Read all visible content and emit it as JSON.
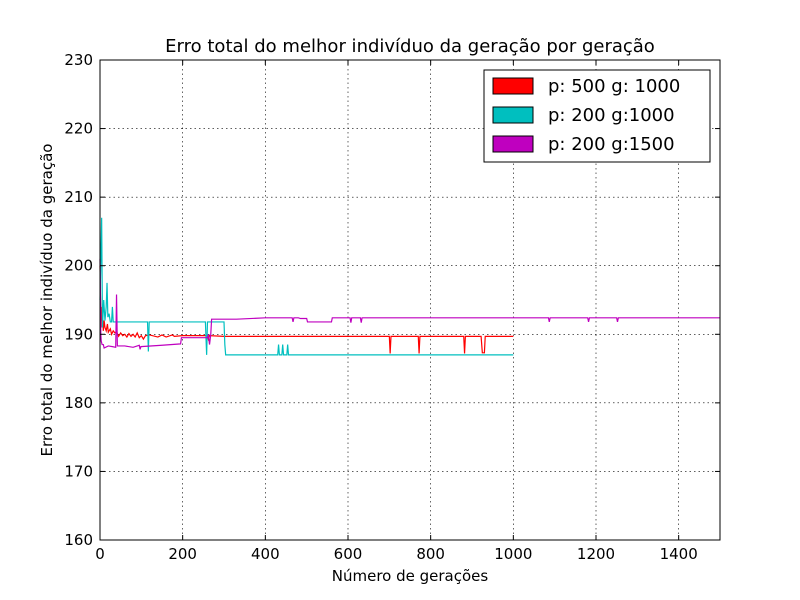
{
  "chart_data": {
    "type": "line",
    "title": "Erro total do melhor indivíduo da geração por geração",
    "xlabel": "Número de gerações",
    "ylabel": "Erro total do melhor indivíduo da geração",
    "xlim": [
      0,
      1500
    ],
    "ylim": [
      160,
      230
    ],
    "xticks": [
      0,
      200,
      400,
      600,
      800,
      1000,
      1200,
      1400
    ],
    "yticks": [
      160,
      170,
      180,
      190,
      200,
      210,
      220,
      230
    ],
    "grid": true,
    "legend_position": "top-right",
    "series": [
      {
        "name": "p: 500 g: 1000",
        "color": "#ff0000",
        "points": [
          [
            0,
            200
          ],
          [
            2,
            192
          ],
          [
            3,
            194
          ],
          [
            5,
            191
          ],
          [
            6,
            193
          ],
          [
            8,
            190.5
          ],
          [
            10,
            192
          ],
          [
            12,
            191
          ],
          [
            15,
            190.5
          ],
          [
            18,
            191.5
          ],
          [
            20,
            190.3
          ],
          [
            25,
            190.8
          ],
          [
            28,
            190
          ],
          [
            32,
            190.5
          ],
          [
            36,
            190.2
          ],
          [
            40,
            190.4
          ],
          [
            45,
            189.7
          ],
          [
            50,
            190.2
          ],
          [
            55,
            189.8
          ],
          [
            60,
            190
          ],
          [
            65,
            189.6
          ],
          [
            70,
            190.1
          ],
          [
            75,
            189.7
          ],
          [
            80,
            190
          ],
          [
            85,
            189.6
          ],
          [
            90,
            190.2
          ],
          [
            95,
            189.5
          ],
          [
            100,
            189.8
          ],
          [
            105,
            189.3
          ],
          [
            110,
            189.8
          ],
          [
            120,
            189.9
          ],
          [
            140,
            189.6
          ],
          [
            150,
            189.9
          ],
          [
            160,
            189.6
          ],
          [
            175,
            189.9
          ],
          [
            180,
            189.7
          ],
          [
            200,
            189.8
          ],
          [
            260,
            189.8
          ],
          [
            262,
            189.3
          ],
          [
            265,
            189.8
          ],
          [
            300,
            189.7
          ],
          [
            700,
            189.7
          ],
          [
            702,
            187.2
          ],
          [
            704,
            189.7
          ],
          [
            770,
            189.7
          ],
          [
            772,
            187.2
          ],
          [
            774,
            189.7
          ],
          [
            880,
            189.7
          ],
          [
            882,
            187.2
          ],
          [
            884,
            189.7
          ],
          [
            922,
            189.7
          ],
          [
            925,
            187.3
          ],
          [
            930,
            187.3
          ],
          [
            932,
            189.7
          ],
          [
            1000,
            189.7
          ]
        ]
      },
      {
        "name": "p: 200 g:1000",
        "color": "#00bfbf",
        "points": [
          [
            0,
            195
          ],
          [
            4,
            207
          ],
          [
            6,
            191
          ],
          [
            9,
            195
          ],
          [
            12,
            192
          ],
          [
            15,
            194
          ],
          [
            17,
            197.5
          ],
          [
            19,
            192.5
          ],
          [
            22,
            193
          ],
          [
            25,
            191.8
          ],
          [
            28,
            191.8
          ],
          [
            30,
            194
          ],
          [
            32,
            191.8
          ],
          [
            115,
            191.8
          ],
          [
            117,
            187.5
          ],
          [
            119,
            191.8
          ],
          [
            255,
            191.8
          ],
          [
            258,
            187
          ],
          [
            260,
            191.8
          ],
          [
            300,
            191.8
          ],
          [
            302,
            188.5
          ],
          [
            304,
            187
          ],
          [
            430,
            187
          ],
          [
            432,
            188.5
          ],
          [
            434,
            187
          ],
          [
            440,
            187
          ],
          [
            442,
            188.5
          ],
          [
            444,
            187
          ],
          [
            452,
            187
          ],
          [
            454,
            188.5
          ],
          [
            456,
            187
          ],
          [
            1000,
            187
          ]
        ]
      },
      {
        "name": "p: 200 g:1500",
        "color": "#bf00bf",
        "points": [
          [
            0,
            201
          ],
          [
            2,
            190
          ],
          [
            3,
            189
          ],
          [
            5,
            188.5
          ],
          [
            8,
            188.5
          ],
          [
            10,
            188
          ],
          [
            20,
            188.3
          ],
          [
            30,
            188.2
          ],
          [
            38,
            188.1
          ],
          [
            40,
            195.8
          ],
          [
            42,
            188.3
          ],
          [
            60,
            188.3
          ],
          [
            80,
            188.1
          ],
          [
            95,
            188.4
          ],
          [
            97,
            187.8
          ],
          [
            99,
            188.2
          ],
          [
            150,
            188.4
          ],
          [
            195,
            188.6
          ],
          [
            197,
            189.5
          ],
          [
            260,
            189.5
          ],
          [
            262,
            190
          ],
          [
            265,
            188.5
          ],
          [
            268,
            190
          ],
          [
            270,
            192.2
          ],
          [
            330,
            192.2
          ],
          [
            400,
            192.4
          ],
          [
            465,
            192.4
          ],
          [
            467,
            191.8
          ],
          [
            469,
            192.4
          ],
          [
            480,
            192.4
          ],
          [
            485,
            192.3
          ],
          [
            500,
            192.3
          ],
          [
            502,
            191.8
          ],
          [
            560,
            191.8
          ],
          [
            562,
            192.4
          ],
          [
            605,
            192.4
          ],
          [
            607,
            191.7
          ],
          [
            609,
            192.4
          ],
          [
            630,
            192.4
          ],
          [
            632,
            191.7
          ],
          [
            634,
            192.4
          ],
          [
            700,
            192.4
          ],
          [
            1000,
            192.4
          ],
          [
            1085,
            192.4
          ],
          [
            1087,
            191.8
          ],
          [
            1089,
            192.4
          ],
          [
            1180,
            192.4
          ],
          [
            1182,
            191.8
          ],
          [
            1184,
            192.4
          ],
          [
            1250,
            192.4
          ],
          [
            1252,
            191.8
          ],
          [
            1254,
            192.4
          ],
          [
            1500,
            192.4
          ]
        ]
      }
    ]
  }
}
